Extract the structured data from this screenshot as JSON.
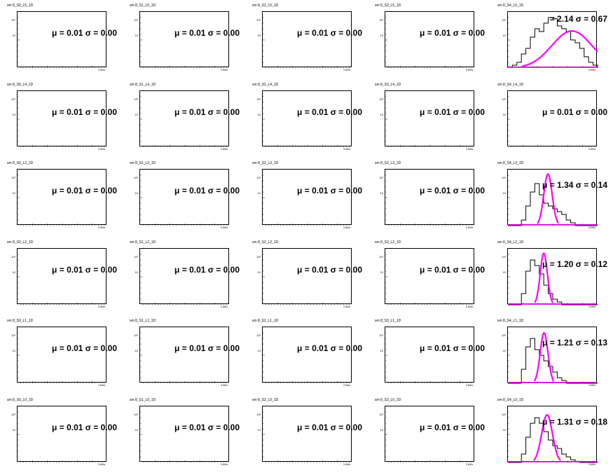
{
  "colors": {
    "histogram": "#000000",
    "fit": "#ff00ff",
    "frame": "#000000"
  },
  "chart_data": [
    {
      "type": "line",
      "title": "sm 8_S0_L5_1D",
      "stats": "μ = 0.01 σ = 0.00",
      "yticks": [
        "10²",
        "10"
      ],
      "xend": "3 MHz",
      "series": []
    },
    {
      "type": "line",
      "title": "sm 8_S1_L5_1D",
      "stats": "μ = 0.01 σ = 0.00",
      "yticks": [
        "10²",
        "10"
      ],
      "xend": "3 MHz",
      "series": []
    },
    {
      "type": "line",
      "title": "sm 8_S2_L5_1D",
      "stats": "μ = 0.01 σ = 0.00",
      "yticks": [
        "10²",
        "10"
      ],
      "xend": "3 MHz",
      "series": []
    },
    {
      "type": "line",
      "title": "sm 8_S3_L5_1D",
      "stats": "μ = 0.01 σ = 0.00",
      "yticks": [
        "10²",
        "10"
      ],
      "xend": "3 MHz",
      "series": []
    },
    {
      "type": "line",
      "title": "sm 8_S4_L5_1D",
      "stats": "= 2.14 σ = 0.67",
      "yticks": [
        "10²",
        "10"
      ],
      "xend": "3 MHz",
      "hist_mean": 2.14,
      "hist_sigma": 0.67,
      "hist_peak": 0.9,
      "series": [
        {
          "style": "hist",
          "values": [
            0.02,
            0.05,
            0.1,
            0.25,
            0.35,
            0.55,
            0.7,
            0.65,
            0.8,
            0.9,
            0.88,
            0.75,
            0.7,
            0.65,
            0.5,
            0.45,
            0.35,
            0.2,
            0.1,
            0.05
          ]
        },
        {
          "style": "fit",
          "mean": 2.14,
          "sigma": 0.67,
          "peak": 0.66
        }
      ]
    },
    {
      "type": "line",
      "title": "sm 8_S0_L4_1D",
      "stats": "μ = 0.01 σ = 0.00",
      "yticks": [
        "10²",
        "10"
      ],
      "xend": "3 MHz",
      "series": []
    },
    {
      "type": "line",
      "title": "sm 8_S1_L4_1D",
      "stats": "μ = 0.01 σ = 0.00",
      "yticks": [
        "10²",
        "10"
      ],
      "xend": "3 MHz",
      "series": []
    },
    {
      "type": "line",
      "title": "sm 8_S2_L4_1D",
      "stats": "μ = 0.01 σ = 0.00",
      "yticks": [
        "10²",
        "10"
      ],
      "xend": "3 MHz",
      "series": []
    },
    {
      "type": "line",
      "title": "sm 8_S3_L4_1D",
      "stats": "μ = 0.01 σ = 0.00",
      "yticks": [
        "10²",
        "10"
      ],
      "xend": "3 MHz",
      "series": []
    },
    {
      "type": "line",
      "title": "sm 8_S4_L4_1D",
      "stats": "μ = 0.01 σ = 0.00",
      "yticks": [
        "10²",
        "10"
      ],
      "xend": "3 MHz",
      "series": []
    },
    {
      "type": "line",
      "title": "sm 8_S0_L3_1D",
      "stats": "μ = 0.01 σ = 0.00",
      "yticks": [
        "10²",
        "10"
      ],
      "xend": "3 MHz",
      "series": []
    },
    {
      "type": "line",
      "title": "sm 8_S1_L3_1D",
      "stats": "μ = 0.01 σ = 0.00",
      "yticks": [
        "10²",
        "10"
      ],
      "xend": "3 MHz",
      "series": []
    },
    {
      "type": "line",
      "title": "sm 8_S2_L3_1D",
      "stats": "μ = 0.01 σ = 0.00",
      "yticks": [
        "10²",
        "10"
      ],
      "xend": "3 MHz",
      "series": []
    },
    {
      "type": "line",
      "title": "sm 8_S3_L3_1D",
      "stats": "μ = 0.01 σ = 0.00",
      "yticks": [
        "10²",
        "10"
      ],
      "xend": "3 MHz",
      "series": []
    },
    {
      "type": "line",
      "title": "sm 8_S4_L3_1D",
      "stats": "μ = 1.34 σ = 0.14",
      "yticks": [
        "10²",
        "10"
      ],
      "xend": "3 MHz",
      "series": [
        {
          "style": "hist",
          "values": [
            0,
            0,
            0,
            0.1,
            0.35,
            0.6,
            0.75,
            0.55,
            0.4,
            0.35,
            0.3,
            0.25,
            0.2,
            0.1,
            0.05,
            0,
            0,
            0,
            0,
            0
          ]
        },
        {
          "style": "fit",
          "mean": 1.34,
          "sigma": 0.14,
          "peak": 0.92
        }
      ]
    },
    {
      "type": "line",
      "title": "sm 8_S0_L2_1D",
      "stats": "μ = 0.01 σ = 0.00",
      "yticks": [
        "10²",
        "10"
      ],
      "xend": "3 MHz",
      "series": []
    },
    {
      "type": "line",
      "title": "sm 8_S1_L2_1D",
      "stats": "μ = 0.01 σ = 0.00",
      "yticks": [
        "10²",
        "10"
      ],
      "xend": "3 MHz",
      "series": []
    },
    {
      "type": "line",
      "title": "sm 8_S2_L2_1D",
      "stats": "μ = 0.01 σ = 0.00",
      "yticks": [
        "10²",
        "10"
      ],
      "xend": "3 MHz",
      "series": []
    },
    {
      "type": "line",
      "title": "sm 8_S3_L2_1D",
      "stats": "μ = 0.01 σ = 0.00",
      "yticks": [
        "10²",
        "10"
      ],
      "xend": "3 MHz",
      "series": []
    },
    {
      "type": "line",
      "title": "sm 8_S4_L2_1D",
      "stats": "μ = 1.20 σ = 0.12",
      "yticks": [
        "10²",
        "10"
      ],
      "xend": "3 MHz",
      "series": [
        {
          "style": "hist",
          "values": [
            0,
            0,
            0,
            0.2,
            0.6,
            0.8,
            0.7,
            0.55,
            0.35,
            0.2,
            0.1,
            0.05,
            0,
            0,
            0,
            0,
            0,
            0,
            0,
            0
          ]
        },
        {
          "style": "fit",
          "mean": 1.2,
          "sigma": 0.12,
          "peak": 0.92
        }
      ]
    },
    {
      "type": "line",
      "title": "sm 8_S0_L1_1D",
      "stats": "μ = 0.01 σ = 0.00",
      "yticks": [
        "10²",
        "10"
      ],
      "xend": "3 MHz",
      "series": []
    },
    {
      "type": "line",
      "title": "sm 8_S1_L1_1D",
      "stats": "μ = 0.01 σ = 0.00",
      "yticks": [
        "10²",
        "10"
      ],
      "xend": "3 MHz",
      "series": []
    },
    {
      "type": "line",
      "title": "sm 8_S2_L1_1D",
      "stats": "μ = 0.01 σ = 0.00",
      "yticks": [
        "10²",
        "10"
      ],
      "xend": "3 MHz",
      "series": []
    },
    {
      "type": "line",
      "title": "sm 8_S3_L1_1D",
      "stats": "μ = 0.01 σ = 0.00",
      "yticks": [
        "10²",
        "10"
      ],
      "xend": "3 MHz",
      "series": []
    },
    {
      "type": "line",
      "title": "sm 8_S4_L1_1D",
      "stats": "μ = 1.21 σ = 0.13",
      "yticks": [
        "10²",
        "10"
      ],
      "xend": "3 MHz",
      "series": [
        {
          "style": "hist",
          "values": [
            0,
            0,
            0,
            0.25,
            0.65,
            0.8,
            0.6,
            0.5,
            0.4,
            0.3,
            0.2,
            0.1,
            0.05,
            0,
            0,
            0,
            0,
            0,
            0,
            0
          ]
        },
        {
          "style": "fit",
          "mean": 1.21,
          "sigma": 0.13,
          "peak": 0.9
        }
      ]
    },
    {
      "type": "line",
      "title": "sm 8_S0_L0_1D",
      "stats": "μ = 0.01 σ = 0.00",
      "yticks": [
        "10²",
        "10"
      ],
      "xend": "3 MHz",
      "series": []
    },
    {
      "type": "line",
      "title": "sm 8_S1_L0_1D",
      "stats": "μ = 0.01 σ = 0.00",
      "yticks": [
        "10²",
        "10"
      ],
      "xend": "3 MHz",
      "series": []
    },
    {
      "type": "line",
      "title": "sm 8_S2_L0_1D",
      "stats": "μ = 0.01 σ = 0.00",
      "yticks": [
        "10²",
        "10"
      ],
      "xend": "3 MHz",
      "series": []
    },
    {
      "type": "line",
      "title": "sm 8_S3_L0_1D",
      "stats": "μ = 0.01 σ = 0.00",
      "yticks": [
        "10²",
        "10"
      ],
      "xend": "3 MHz",
      "series": []
    },
    {
      "type": "line",
      "title": "sm 8_S4_L0_1D",
      "stats": "μ = 1.31 σ = 0.18",
      "yticks": [
        "10²",
        "10"
      ],
      "xend": "3 MHz",
      "series": [
        {
          "style": "hist",
          "values": [
            0,
            0,
            0,
            0.15,
            0.45,
            0.7,
            0.8,
            0.7,
            0.55,
            0.4,
            0.3,
            0.25,
            0.15,
            0.1,
            0.05,
            0.02,
            0,
            0,
            0,
            0
          ]
        },
        {
          "style": "fit",
          "mean": 1.31,
          "sigma": 0.18,
          "peak": 0.85
        }
      ]
    }
  ]
}
